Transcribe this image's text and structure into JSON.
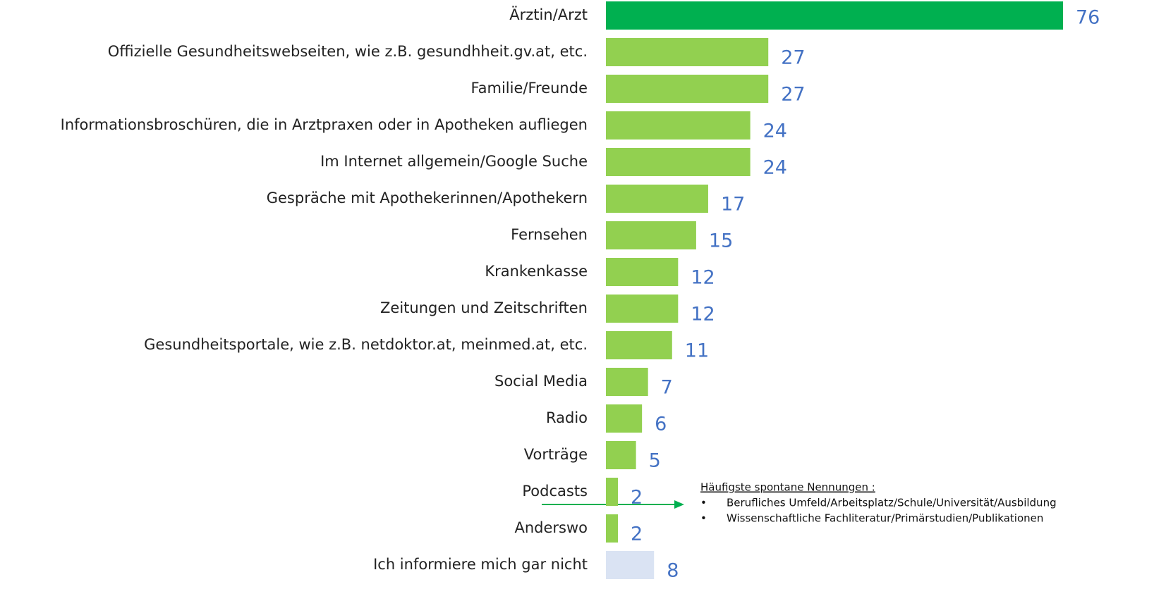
{
  "chart_data": {
    "type": "bar",
    "orientation": "horizontal",
    "categories": [
      "Ärztin/Arzt",
      "Offizielle Gesundheitswebseiten, wie z.B. gesundhheit.gv.at, etc.",
      "Familie/Freunde",
      "Informationsbroschüren, die in Arztpraxen oder in Apotheken aufliegen",
      "Im Internet allgemein/Google Suche",
      "Gespräche mit Apothekerinnen/Apothekern",
      "Fernsehen",
      "Krankenkasse",
      "Zeitungen und Zeitschriften",
      "Gesundheitsportale, wie z.B. netdoktor.at, meinmed.at, etc.",
      "Social Media",
      "Radio",
      "Vorträge",
      "Podcasts",
      "Anderswo",
      "Ich informiere mich gar nicht"
    ],
    "values": [
      76,
      27,
      27,
      24,
      24,
      17,
      15,
      12,
      12,
      11,
      7,
      6,
      5,
      2,
      2,
      8
    ],
    "colors": [
      "#00b050",
      "#92d050",
      "#92d050",
      "#92d050",
      "#92d050",
      "#92d050",
      "#92d050",
      "#92d050",
      "#92d050",
      "#92d050",
      "#92d050",
      "#92d050",
      "#92d050",
      "#92d050",
      "#92d050",
      "#dae3f3"
    ],
    "value_label_color": "#4472c4",
    "annotation": {
      "title": "Häufigste spontane Nennungen :",
      "items": [
        "Berufliches Umfeld/Arbeitsplatz/Schule/Universität/Ausbildung",
        "Wissenschaftliche Fachliteratur/Primärstudien/Publikationen"
      ]
    }
  }
}
